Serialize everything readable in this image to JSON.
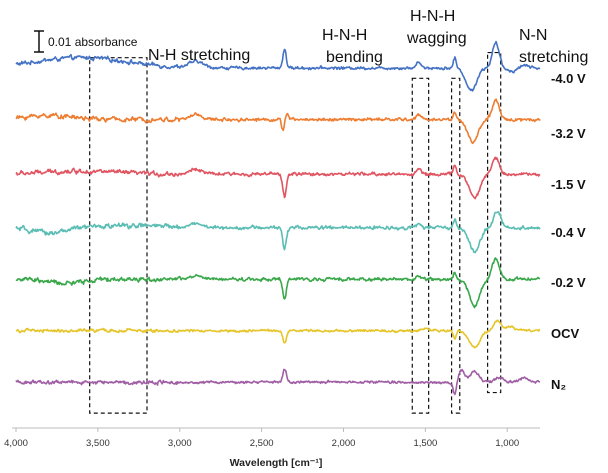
{
  "chart_data": {
    "type": "line",
    "title": "",
    "xlabel": "Wavelength [cm⁻¹]",
    "ylabel": "",
    "x_reversed": true,
    "xlim": [
      4000,
      800
    ],
    "x_ticks": [
      4000,
      3500,
      3000,
      2500,
      2000,
      1500,
      1000
    ],
    "x_tick_labels": [
      "4,000",
      "3,500",
      "3,000",
      "2,500",
      "2,000",
      "1,500",
      "1,000"
    ],
    "grid": false,
    "scale_bar": {
      "label": "0.01 absorbance",
      "value": 0.01
    },
    "band_labels": [
      {
        "lines": [
          "N-H stretching"
        ],
        "region": [
          3550,
          3200
        ]
      },
      {
        "lines": [
          "H-N-H",
          "bending"
        ],
        "region": [
          1580,
          1480
        ]
      },
      {
        "lines": [
          "H-N-H",
          "wagging"
        ],
        "region": [
          1340,
          1290
        ]
      },
      {
        "lines": [
          "N-N",
          "stretching"
        ],
        "region": [
          1120,
          1040
        ]
      }
    ],
    "series": [
      {
        "name": "-4.0 V",
        "color": "#4472c4",
        "baseline": 0.0,
        "features": [
          [
            3600,
            0.01,
            400
          ],
          [
            2900,
            0.006,
            60
          ],
          [
            2360,
            0.018,
            15
          ],
          [
            1540,
            0.006,
            20
          ],
          [
            1320,
            0.01,
            12
          ],
          [
            1220,
            -0.022,
            45
          ],
          [
            1070,
            0.024,
            30
          ],
          [
            960,
            -0.003,
            60
          ],
          [
            900,
            0.004,
            40
          ]
        ],
        "noise": 0.0028
      },
      {
        "name": "-3.2 V",
        "color": "#ed7d31",
        "baseline": -0.05,
        "features": [
          [
            3800,
            0.004,
            200
          ],
          [
            2900,
            0.005,
            50
          ],
          [
            2370,
            -0.01,
            12
          ],
          [
            2345,
            0.006,
            12
          ],
          [
            1540,
            0.005,
            20
          ],
          [
            1320,
            0.008,
            12
          ],
          [
            1210,
            -0.022,
            45
          ],
          [
            1070,
            0.018,
            30
          ]
        ],
        "noise": 0.003
      },
      {
        "name": "-1.5 V",
        "color": "#e05561",
        "baseline": -0.103,
        "features": [
          [
            3600,
            0.003,
            300
          ],
          [
            2900,
            0.005,
            50
          ],
          [
            2360,
            -0.022,
            15
          ],
          [
            1540,
            0.005,
            20
          ],
          [
            1320,
            0.008,
            12
          ],
          [
            1200,
            -0.023,
            45
          ],
          [
            1070,
            0.016,
            30
          ]
        ],
        "noise": 0.003
      },
      {
        "name": "-0.4 V",
        "color": "#5bbdb4",
        "baseline": -0.155,
        "features": [
          [
            3800,
            -0.005,
            150
          ],
          [
            3300,
            0.002,
            300
          ],
          [
            2900,
            0.004,
            50
          ],
          [
            2360,
            -0.02,
            15
          ],
          [
            1540,
            0.004,
            20
          ],
          [
            1320,
            0.007,
            12
          ],
          [
            1200,
            -0.024,
            45
          ],
          [
            1060,
            0.016,
            30
          ]
        ],
        "noise": 0.0033
      },
      {
        "name": "-0.2 V",
        "color": "#3aa84a",
        "baseline": -0.205,
        "features": [
          [
            3700,
            -0.004,
            150
          ],
          [
            2900,
            0.003,
            50
          ],
          [
            2360,
            -0.02,
            15
          ],
          [
            1540,
            0.003,
            20
          ],
          [
            1320,
            0.006,
            12
          ],
          [
            1200,
            -0.026,
            45
          ],
          [
            1070,
            0.02,
            30
          ]
        ],
        "noise": 0.003
      },
      {
        "name": "OCV",
        "color": "#e6c52a",
        "baseline": -0.255,
        "features": [
          [
            2360,
            -0.012,
            15
          ],
          [
            1500,
            0.002,
            30
          ],
          [
            1320,
            -0.008,
            12
          ],
          [
            1200,
            -0.016,
            45
          ],
          [
            1060,
            0.01,
            30
          ],
          [
            980,
            0.004,
            40
          ]
        ],
        "noise": 0.0022
      },
      {
        "name": "N₂",
        "color": "#a05fa5",
        "baseline": -0.305,
        "features": [
          [
            2360,
            0.012,
            15
          ],
          [
            1320,
            -0.012,
            15
          ],
          [
            1280,
            0.012,
            25
          ],
          [
            1200,
            0.01,
            40
          ],
          [
            1050,
            0.004,
            40
          ],
          [
            900,
            0.004,
            40
          ]
        ],
        "noise": 0.0024
      }
    ],
    "boxes": [
      {
        "x": [
          3550,
          3200
        ],
        "y": [
          0.01,
          -0.335
        ]
      },
      {
        "x": [
          1580,
          1480
        ],
        "y": [
          -0.01,
          -0.335
        ]
      },
      {
        "x": [
          1340,
          1290
        ],
        "y": [
          -0.01,
          -0.335
        ]
      },
      {
        "x": [
          1120,
          1040
        ],
        "y": [
          0.015,
          -0.315
        ]
      }
    ]
  }
}
